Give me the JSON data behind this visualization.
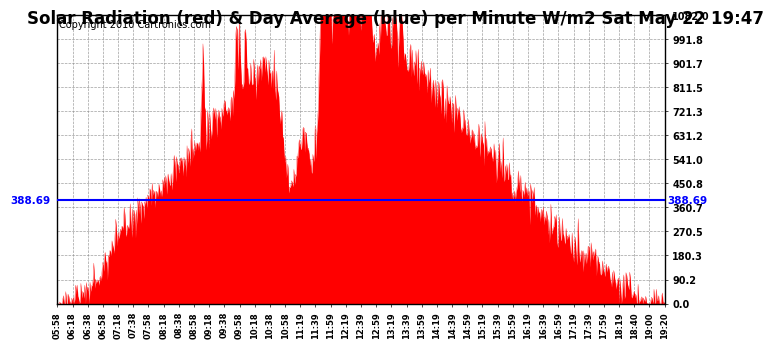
{
  "title": "Solar Radiation (red) & Day Average (blue) per Minute W/m2 Sat May 22 19:47",
  "copyright_text": "Copyright 2010 Cartronics.com",
  "ymin": 0.0,
  "ymax": 1082.0,
  "yticks": [
    0.0,
    90.2,
    180.3,
    270.5,
    360.7,
    450.8,
    541.0,
    631.2,
    721.3,
    811.5,
    901.7,
    991.8,
    1082.0
  ],
  "day_average": 388.69,
  "avg_label": "388.69",
  "title_fontsize": 12,
  "copyright_fontsize": 7,
  "background_color": "#ffffff",
  "fill_color": "#ff0000",
  "line_color": "#0000ff",
  "xtick_labels": [
    "05:58",
    "06:18",
    "06:38",
    "06:58",
    "07:18",
    "07:38",
    "07:58",
    "08:18",
    "08:38",
    "08:58",
    "09:18",
    "09:38",
    "09:58",
    "10:18",
    "10:38",
    "10:58",
    "11:19",
    "11:39",
    "11:59",
    "12:19",
    "12:39",
    "12:59",
    "13:19",
    "13:39",
    "13:59",
    "14:19",
    "14:39",
    "14:59",
    "15:19",
    "15:39",
    "15:59",
    "16:19",
    "16:39",
    "16:59",
    "17:19",
    "17:39",
    "17:59",
    "18:19",
    "18:40",
    "19:00",
    "19:20"
  ]
}
